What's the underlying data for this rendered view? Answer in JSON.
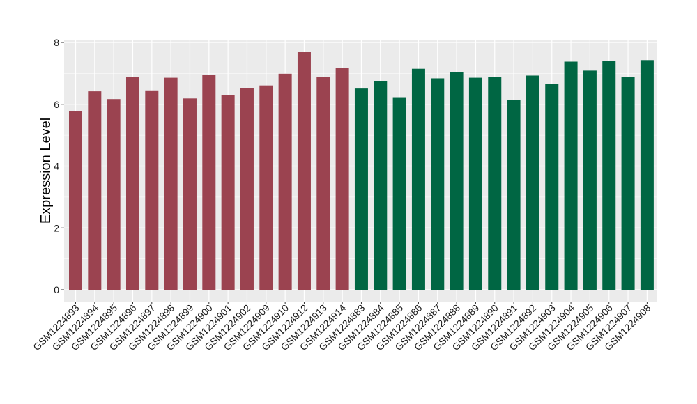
{
  "chart_data": {
    "type": "bar",
    "title": "",
    "xlabel": "",
    "ylabel": "Expression Level",
    "ylim": [
      0,
      8
    ],
    "yticks": [
      0,
      2,
      4,
      6,
      8
    ],
    "grid": true,
    "legend": "none",
    "colors": {
      "group1": "#9b4350",
      "group2": "#006643",
      "panel": "#ebebeb",
      "grid": "#ffffff"
    },
    "categories": [
      "GSM1224893",
      "GSM1224894",
      "GSM1224895",
      "GSM1224896",
      "GSM1224897",
      "GSM1224898",
      "GSM1224899",
      "GSM1224900",
      "GSM1224901",
      "GSM1224902",
      "GSM1224909",
      "GSM1224910",
      "GSM1224912",
      "GSM1224913",
      "GSM1224914",
      "GSM1224883",
      "GSM1224884",
      "GSM1224885",
      "GSM1224886",
      "GSM1224887",
      "GSM1224888",
      "GSM1224889",
      "GSM1224890",
      "GSM1224891",
      "GSM1224892",
      "GSM1224903",
      "GSM1224904",
      "GSM1224905",
      "GSM1224906",
      "GSM1224907",
      "GSM1224908"
    ],
    "values": [
      5.78,
      6.42,
      6.17,
      6.88,
      6.45,
      6.86,
      6.19,
      6.96,
      6.3,
      6.53,
      6.61,
      6.99,
      7.7,
      6.89,
      7.18,
      6.51,
      6.75,
      6.23,
      7.15,
      6.84,
      7.04,
      6.86,
      6.89,
      6.15,
      6.93,
      6.65,
      7.38,
      7.09,
      7.4,
      6.89,
      7.43
    ],
    "groups": [
      "group1",
      "group1",
      "group1",
      "group1",
      "group1",
      "group1",
      "group1",
      "group1",
      "group1",
      "group1",
      "group1",
      "group1",
      "group1",
      "group1",
      "group1",
      "group2",
      "group2",
      "group2",
      "group2",
      "group2",
      "group2",
      "group2",
      "group2",
      "group2",
      "group2",
      "group2",
      "group2",
      "group2",
      "group2",
      "group2",
      "group2"
    ]
  }
}
